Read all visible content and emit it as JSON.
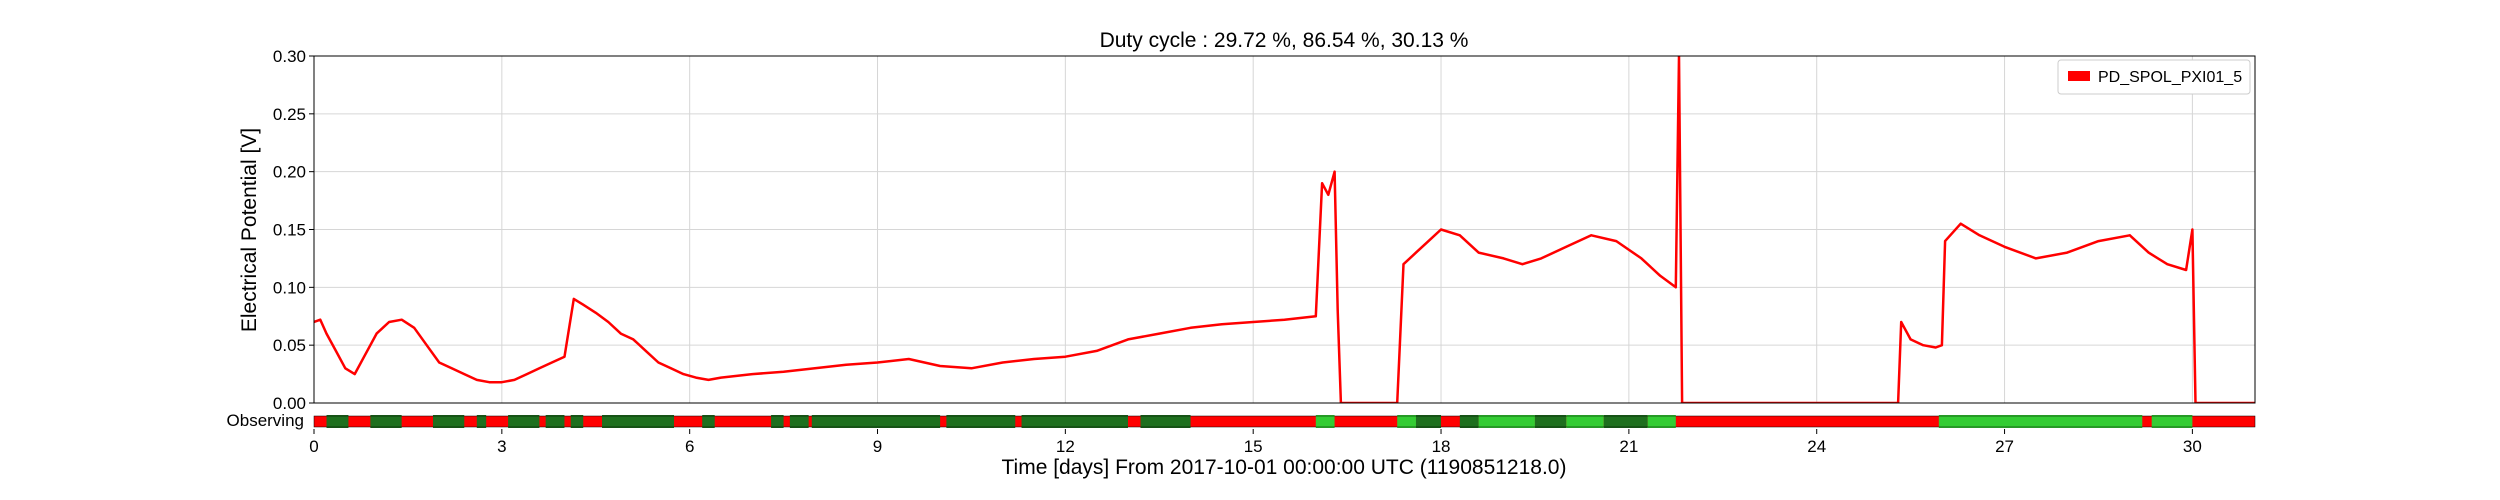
{
  "chart_data": {
    "type": "line",
    "title": "Duty cycle : 29.72 %, 86.54 %, 30.13 %",
    "xlabel": "Time [days] From 2017-10-01 00:00:00 UTC (1190851218.0)",
    "ylabel": "Electrical Potential [V]",
    "xlim": [
      0,
      31
    ],
    "ylim": [
      0,
      0.3
    ],
    "x_ticks": [
      0,
      3,
      6,
      9,
      12,
      15,
      18,
      21,
      24,
      27,
      30
    ],
    "y_ticks": [
      0.0,
      0.05,
      0.1,
      0.15,
      0.2,
      0.25,
      0.3
    ],
    "y_tick_labels": [
      "0.00",
      "0.05",
      "0.10",
      "0.15",
      "0.20",
      "0.25",
      "0.30"
    ],
    "grid": true,
    "legend_position": "top-right",
    "series": [
      {
        "name": "PD_SPOL_PXI01_5",
        "color": "#ff0000",
        "x": [
          0,
          0.1,
          0.2,
          0.35,
          0.5,
          0.65,
          0.8,
          1.0,
          1.2,
          1.4,
          1.6,
          1.8,
          2.0,
          2.2,
          2.4,
          2.6,
          2.8,
          3.0,
          3.2,
          3.4,
          3.6,
          3.8,
          4.0,
          4.15,
          4.3,
          4.5,
          4.7,
          4.9,
          5.1,
          5.3,
          5.5,
          5.7,
          5.9,
          6.1,
          6.3,
          6.5,
          7.0,
          7.5,
          8.0,
          8.5,
          9.0,
          9.5,
          10.0,
          10.5,
          11.0,
          11.5,
          12.0,
          12.5,
          13.0,
          13.5,
          14.0,
          14.5,
          15.0,
          15.5,
          16.0,
          16.1,
          16.2,
          16.3,
          16.35,
          16.4,
          16.7,
          17.0,
          17.3,
          17.4,
          17.6,
          17.8,
          18.0,
          18.3,
          18.6,
          19.0,
          19.3,
          19.6,
          20.0,
          20.4,
          20.8,
          21.2,
          21.5,
          21.75,
          21.8,
          21.85,
          22.0,
          23.0,
          24.0,
          25.0,
          25.3,
          25.35,
          25.5,
          25.7,
          25.9,
          26.0,
          26.05,
          26.3,
          26.6,
          27.0,
          27.5,
          28.0,
          28.5,
          29.0,
          29.3,
          29.6,
          29.9,
          30.0,
          30.05,
          30.1,
          31.0
        ],
        "y": [
          0.07,
          0.072,
          0.06,
          0.045,
          0.03,
          0.025,
          0.04,
          0.06,
          0.07,
          0.072,
          0.065,
          0.05,
          0.035,
          0.03,
          0.025,
          0.02,
          0.018,
          0.018,
          0.02,
          0.025,
          0.03,
          0.035,
          0.04,
          0.09,
          0.085,
          0.078,
          0.07,
          0.06,
          0.055,
          0.045,
          0.035,
          0.03,
          0.025,
          0.022,
          0.02,
          0.022,
          0.025,
          0.027,
          0.03,
          0.033,
          0.035,
          0.038,
          0.032,
          0.03,
          0.035,
          0.038,
          0.04,
          0.045,
          0.055,
          0.06,
          0.065,
          0.068,
          0.07,
          0.072,
          0.075,
          0.19,
          0.18,
          0.2,
          0.08,
          0.0,
          0.0,
          0.0,
          0.0,
          0.12,
          0.13,
          0.14,
          0.15,
          0.145,
          0.13,
          0.125,
          0.12,
          0.125,
          0.135,
          0.145,
          0.14,
          0.125,
          0.11,
          0.1,
          0.3,
          0.0,
          0.0,
          0.0,
          0.0,
          0.0,
          0.0,
          0.07,
          0.055,
          0.05,
          0.048,
          0.05,
          0.14,
          0.155,
          0.145,
          0.135,
          0.125,
          0.13,
          0.14,
          0.145,
          0.13,
          0.12,
          0.115,
          0.15,
          0.0,
          0.0,
          0.0
        ]
      }
    ],
    "state_bar": {
      "label": "Observing",
      "colors": {
        "off": "#ff0000",
        "on_dark": "#1e6f1e",
        "on_light": "#33cc33"
      },
      "segments": [
        {
          "start": 0.2,
          "end": 0.55,
          "state": "on_dark"
        },
        {
          "start": 0.9,
          "end": 1.4,
          "state": "on_dark"
        },
        {
          "start": 1.9,
          "end": 2.4,
          "state": "on_dark"
        },
        {
          "start": 2.6,
          "end": 2.75,
          "state": "on_dark"
        },
        {
          "start": 3.1,
          "end": 3.6,
          "state": "on_dark"
        },
        {
          "start": 3.7,
          "end": 4.0,
          "state": "on_dark"
        },
        {
          "start": 4.1,
          "end": 4.3,
          "state": "on_dark"
        },
        {
          "start": 4.6,
          "end": 5.75,
          "state": "on_dark"
        },
        {
          "start": 6.2,
          "end": 6.4,
          "state": "on_dark"
        },
        {
          "start": 7.3,
          "end": 7.5,
          "state": "on_dark"
        },
        {
          "start": 7.6,
          "end": 7.9,
          "state": "on_dark"
        },
        {
          "start": 7.95,
          "end": 10.0,
          "state": "on_dark"
        },
        {
          "start": 10.1,
          "end": 11.2,
          "state": "on_dark"
        },
        {
          "start": 11.3,
          "end": 13.0,
          "state": "on_dark"
        },
        {
          "start": 13.2,
          "end": 14.0,
          "state": "on_dark"
        },
        {
          "start": 16.0,
          "end": 16.3,
          "state": "on_light"
        },
        {
          "start": 17.3,
          "end": 17.6,
          "state": "on_light"
        },
        {
          "start": 17.6,
          "end": 18.0,
          "state": "on_dark"
        },
        {
          "start": 18.3,
          "end": 18.6,
          "state": "on_dark"
        },
        {
          "start": 18.6,
          "end": 19.5,
          "state": "on_light"
        },
        {
          "start": 19.5,
          "end": 20.0,
          "state": "on_dark"
        },
        {
          "start": 20.0,
          "end": 20.6,
          "state": "on_light"
        },
        {
          "start": 20.6,
          "end": 21.3,
          "state": "on_dark"
        },
        {
          "start": 21.3,
          "end": 21.75,
          "state": "on_light"
        },
        {
          "start": 25.95,
          "end": 29.2,
          "state": "on_light"
        },
        {
          "start": 29.35,
          "end": 30.0,
          "state": "on_light"
        }
      ]
    }
  }
}
